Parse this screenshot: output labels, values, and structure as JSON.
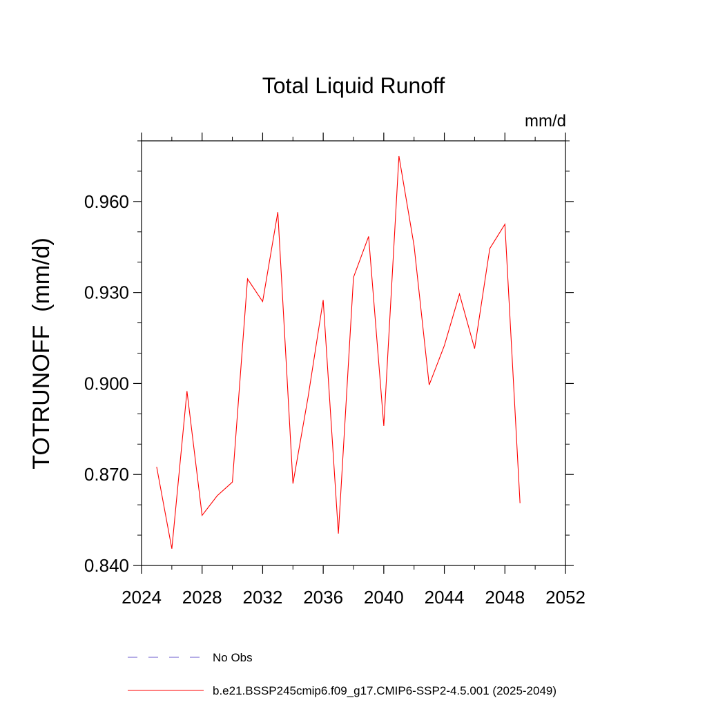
{
  "chart_data": {
    "type": "line",
    "title": "Total Liquid Runoff",
    "units_label": "mm/d",
    "ylabel": "TOTRUNOFF  (mm/d)",
    "xlabel": "",
    "xlim": [
      2024,
      2052
    ],
    "ylim": [
      0.84,
      0.98
    ],
    "x_ticks": [
      2024,
      2028,
      2032,
      2036,
      2040,
      2044,
      2048,
      2052
    ],
    "x_tick_labels": [
      "2024",
      "2028",
      "2032",
      "2036",
      "2040",
      "2044",
      "2048",
      "2052"
    ],
    "x_minor_step": 2,
    "y_ticks": [
      0.84,
      0.87,
      0.9,
      0.93,
      0.96
    ],
    "y_tick_labels": [
      "0.840",
      "0.870",
      "0.900",
      "0.930",
      "0.960"
    ],
    "y_minor_step": 0.01,
    "grid": false,
    "legend_position": "bottom",
    "series": [
      {
        "name": "b.e21.BSSP245cmip6.f09_g17.CMIP6-SSP2-4.5.001 (2025-2049)",
        "color": "#ff0000",
        "dash": "solid",
        "x": [
          2025,
          2026,
          2027,
          2028,
          2029,
          2030,
          2031,
          2032,
          2033,
          2034,
          2035,
          2036,
          2037,
          2038,
          2039,
          2040,
          2041,
          2042,
          2043,
          2044,
          2045,
          2046,
          2047,
          2048,
          2049
        ],
        "y": [
          0.8725,
          0.8455,
          0.8975,
          0.8565,
          0.863,
          0.8675,
          0.9345,
          0.927,
          0.9565,
          0.867,
          0.8955,
          0.9275,
          0.8505,
          0.935,
          0.9485,
          0.886,
          0.975,
          0.9455,
          0.8995,
          0.9125,
          0.9295,
          0.9115,
          0.9445,
          0.9525,
          0.8605
        ]
      }
    ],
    "legend": [
      {
        "label": "No Obs",
        "color": "#6a5acd",
        "dash": "dashed"
      },
      {
        "label": "b.e21.BSSP245cmip6.f09_g17.CMIP6-SSP2-4.5.001 (2025-2049)",
        "color": "#ff0000",
        "dash": "solid"
      }
    ]
  }
}
